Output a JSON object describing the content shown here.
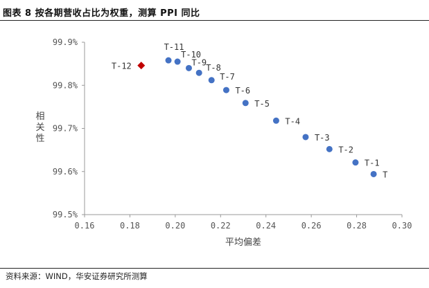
{
  "figure": {
    "caption": "图表 8 按各期营收占比为权重，测算 PPI 同比",
    "source": "资料来源：WIND，华安证券研究所测算"
  },
  "chart_data": {
    "type": "scatter",
    "xlabel": "平均偏差",
    "ylabel": "相关性",
    "xlim": [
      0.16,
      0.3
    ],
    "ylim": [
      99.5,
      99.9
    ],
    "xticks": [
      0.16,
      0.18,
      0.2,
      0.22,
      0.24,
      0.26,
      0.28,
      0.3
    ],
    "yticks": [
      99.5,
      99.6,
      99.7,
      99.8,
      99.9
    ],
    "xtick_labels": [
      "0.16",
      "0.18",
      "0.20",
      "0.22",
      "0.24",
      "0.26",
      "0.28",
      "0.30"
    ],
    "ytick_labels": [
      "99.5%",
      "99.6%",
      "99.7%",
      "99.8%",
      "99.9%"
    ],
    "grid": false,
    "colors": {
      "point": "#4472C4",
      "highlight": "#C00000",
      "axis": "#999999"
    },
    "points": [
      {
        "label": "T",
        "x": 0.2875,
        "y": 99.594,
        "highlight": false
      },
      {
        "label": "T-1",
        "x": 0.2795,
        "y": 99.621,
        "highlight": false
      },
      {
        "label": "T-2",
        "x": 0.268,
        "y": 99.652,
        "highlight": false
      },
      {
        "label": "T-3",
        "x": 0.2575,
        "y": 99.68,
        "highlight": false
      },
      {
        "label": "T-4",
        "x": 0.2445,
        "y": 99.718,
        "highlight": false
      },
      {
        "label": "T-5",
        "x": 0.231,
        "y": 99.759,
        "highlight": false
      },
      {
        "label": "T-6",
        "x": 0.2225,
        "y": 99.789,
        "highlight": false
      },
      {
        "label": "T-7",
        "x": 0.216,
        "y": 99.812,
        "highlight": false
      },
      {
        "label": "T-8",
        "x": 0.2105,
        "y": 99.829,
        "highlight": false
      },
      {
        "label": "T-9",
        "x": 0.206,
        "y": 99.84,
        "highlight": false
      },
      {
        "label": "T-10",
        "x": 0.201,
        "y": 99.855,
        "highlight": false
      },
      {
        "label": "T-11",
        "x": 0.197,
        "y": 99.858,
        "highlight": false
      },
      {
        "label": "T-12",
        "x": 0.185,
        "y": 99.846,
        "highlight": true
      }
    ]
  }
}
